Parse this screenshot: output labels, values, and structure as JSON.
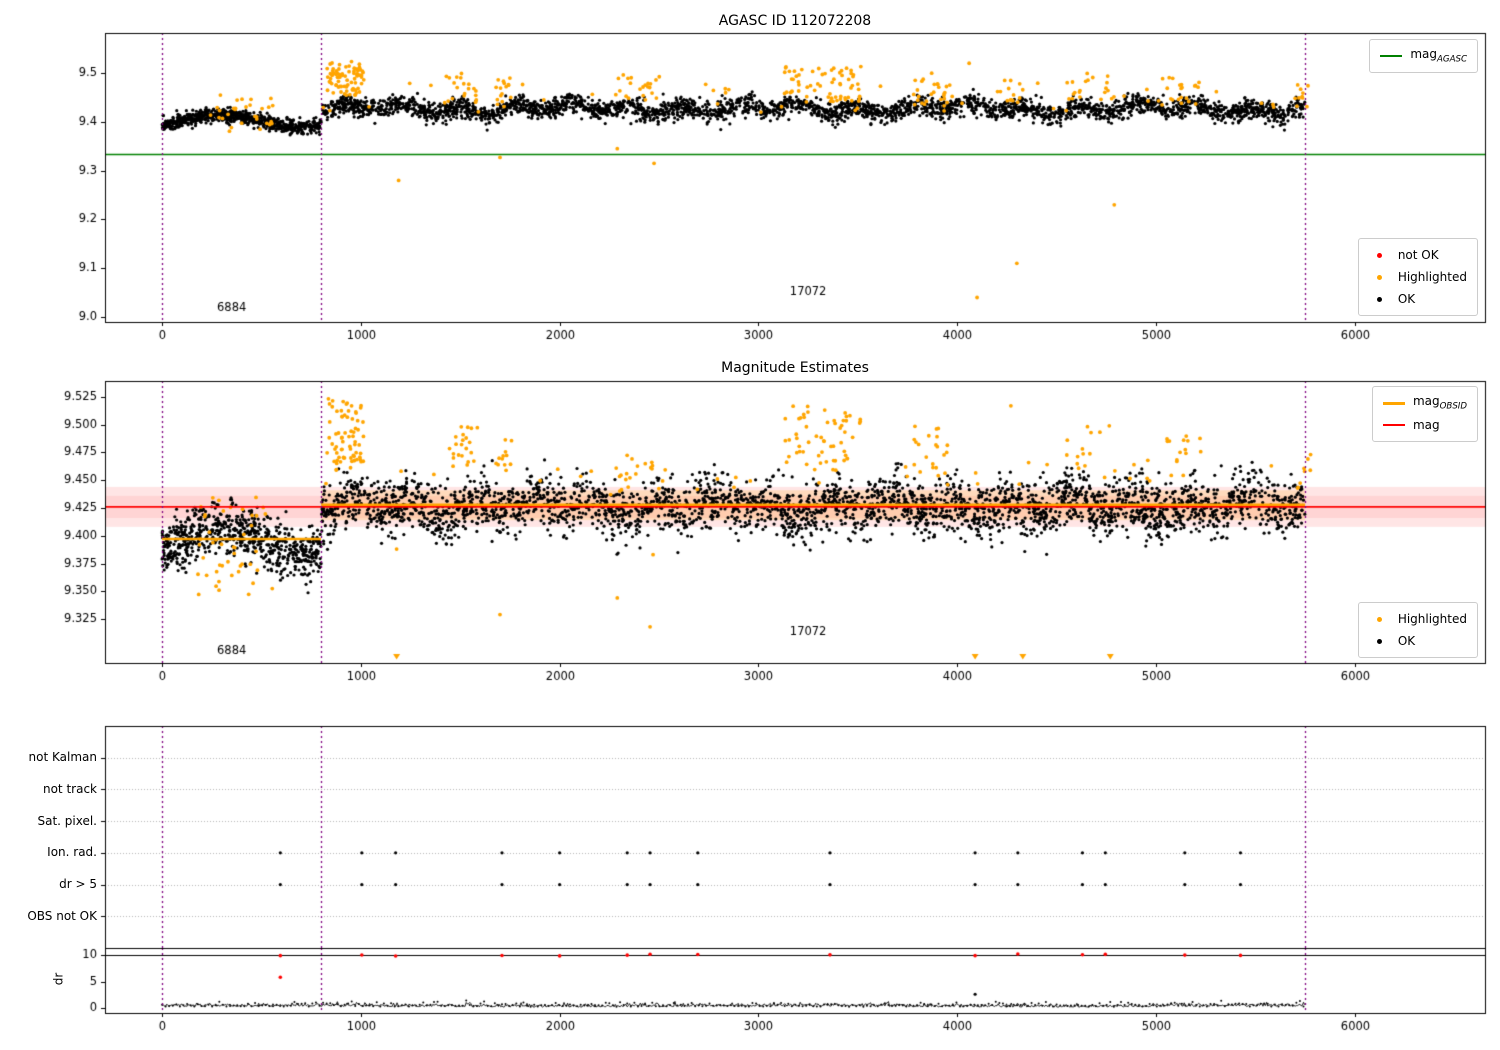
{
  "colors": {
    "ok": "#000000",
    "highlighted": "#ffa500",
    "not_ok": "#ff0000",
    "mag_agasc": "#008000",
    "mag": "#ff0000",
    "mag_obsid": "#ffa500",
    "vline": "#800080"
  },
  "chart_data": [
    {
      "type": "scatter",
      "title": "AGASC ID 112072208",
      "xlim": [
        -287,
        6655
      ],
      "ylim": [
        8.9898,
        9.582
      ],
      "xticks": [
        0,
        1000,
        2000,
        3000,
        4000,
        5000,
        6000
      ],
      "yticks": [
        9.0,
        9.1,
        9.2,
        9.3,
        9.4,
        9.5
      ],
      "ytick_decimals": 1,
      "mag_agasc": 9.333,
      "vlines": [
        0,
        800,
        5750
      ],
      "annotations": [
        {
          "text": "6884",
          "x": 350,
          "y": 9.018
        },
        {
          "text": "17072",
          "x": 3250,
          "y": 9.052
        }
      ],
      "ok_segments": [
        {
          "x0": 0,
          "x1": 800,
          "n": 760,
          "base": 9.402,
          "amp1": 0.012,
          "p1": 800,
          "ph1": -0.785,
          "amp2": 0,
          "p2": 1,
          "ph2": 0,
          "sigma": 0.007,
          "clip": [
            9.368,
            9.462
          ]
        },
        {
          "x0": 800,
          "x1": 5750,
          "n": 3000,
          "base": 9.427,
          "amp1": 0.007,
          "p1": 285,
          "ph1": 0,
          "amp2": 0.005,
          "p2": 980,
          "ph2": 1.0,
          "sigma": 0.01,
          "clip": [
            9.383,
            9.492
          ]
        }
      ],
      "highlight_clusters": [
        [
          30,
          240,
          560,
          9.37,
          9.455
        ],
        [
          80,
          830,
          1020,
          9.45,
          9.525
        ],
        [
          18,
          1430,
          1600,
          9.44,
          9.505
        ],
        [
          14,
          1680,
          1760,
          9.43,
          9.49
        ],
        [
          20,
          2280,
          2520,
          9.435,
          9.5
        ],
        [
          60,
          3130,
          3520,
          9.44,
          9.515
        ],
        [
          25,
          3780,
          3960,
          9.43,
          9.5
        ],
        [
          12,
          4200,
          4330,
          9.44,
          9.492
        ],
        [
          18,
          4550,
          4800,
          9.44,
          9.5
        ],
        [
          20,
          5030,
          5230,
          9.43,
          9.5
        ],
        [
          10,
          5700,
          5780,
          9.43,
          9.48
        ],
        [
          55,
          800,
          5750,
          9.42,
          9.48
        ]
      ],
      "highlight_outliers": [
        [
          1190,
          9.28
        ],
        [
          1700,
          9.327
        ],
        [
          2290,
          9.345
        ],
        [
          2475,
          9.315
        ],
        [
          4060,
          9.52
        ],
        [
          4100,
          9.04
        ],
        [
          4300,
          9.11
        ],
        [
          4790,
          9.23
        ]
      ]
    },
    {
      "type": "scatter",
      "title": "Magnitude Estimates",
      "xlim": [
        -287,
        6655
      ],
      "ylim": [
        9.2854,
        9.5394
      ],
      "xticks": [
        0,
        1000,
        2000,
        3000,
        4000,
        5000,
        6000
      ],
      "yticks": [
        9.325,
        9.35,
        9.375,
        9.4,
        9.425,
        9.45,
        9.475,
        9.5,
        9.525
      ],
      "ytick_decimals": 3,
      "mag": 9.426,
      "mag_obsid_segments": [
        {
          "x0": 0,
          "x1": 800,
          "y": 9.397
        },
        {
          "x0": 800,
          "x1": 5750,
          "y": 9.428
        }
      ],
      "bands": [
        {
          "x0": -287,
          "x1": 6655,
          "y0": 9.408,
          "y1": 9.444,
          "color": "rgba(255,0,0,0.10)"
        },
        {
          "x0": -287,
          "x1": 6655,
          "y0": 9.416,
          "y1": 9.436,
          "color": "rgba(255,0,0,0.08)"
        },
        {
          "x0": 800,
          "x1": 5750,
          "y0": 9.414,
          "y1": 9.441,
          "color": "rgba(255,165,0,0.18)"
        }
      ],
      "vlines": [
        0,
        800,
        5750
      ],
      "annotations": [
        {
          "text": "6884",
          "x": 350,
          "y": 9.296
        },
        {
          "text": "17072",
          "x": 3250,
          "y": 9.313
        }
      ],
      "ok_segments": [
        {
          "x0": 0,
          "x1": 800,
          "n": 700,
          "base": 9.396,
          "amp1": 0.012,
          "p1": 800,
          "ph1": -0.785,
          "amp2": 0,
          "p2": 1,
          "ph2": 0,
          "sigma": 0.012,
          "clip": [
            9.347,
            9.448
          ]
        },
        {
          "x0": 800,
          "x1": 5750,
          "n": 3200,
          "base": 9.4265,
          "amp1": 0.006,
          "p1": 300,
          "ph1": 0,
          "amp2": 0.004,
          "p2": 900,
          "ph2": 1.0,
          "sigma": 0.0125,
          "clip": [
            9.373,
            9.486
          ]
        }
      ],
      "highlight_clusters": [
        [
          45,
          180,
          560,
          9.345,
          9.44
        ],
        [
          70,
          830,
          1020,
          9.465,
          9.525
        ],
        [
          20,
          1430,
          1600,
          9.462,
          9.5
        ],
        [
          12,
          1680,
          1760,
          9.455,
          9.49
        ],
        [
          18,
          2280,
          2520,
          9.44,
          9.475
        ],
        [
          55,
          3130,
          3520,
          9.455,
          9.518
        ],
        [
          20,
          3780,
          3960,
          9.45,
          9.5
        ],
        [
          15,
          4550,
          4800,
          9.45,
          9.5
        ],
        [
          15,
          5050,
          5230,
          9.45,
          9.49
        ],
        [
          8,
          5700,
          5780,
          9.44,
          9.475
        ],
        [
          40,
          800,
          5750,
          9.435,
          9.468
        ]
      ],
      "highlight_outliers": [
        [
          1700,
          9.329
        ],
        [
          2290,
          9.344
        ],
        [
          2455,
          9.318
        ],
        [
          2470,
          9.383
        ],
        [
          4270,
          9.517
        ],
        [
          1180,
          9.388
        ]
      ],
      "clipped_markers": [
        1180,
        4090,
        4330,
        4770
      ]
    },
    {
      "type": "flags",
      "xlim": [
        -287,
        6655
      ],
      "rows": [
        "not Kalman",
        "not track",
        "Sat. pixel.",
        "Ion. rad.",
        "dr > 5",
        "OBS not OK"
      ],
      "ion_rad_events": [
        595,
        1005,
        1175,
        1710,
        2000,
        2340,
        2455,
        2695,
        3360,
        4090,
        4305,
        4630,
        4745,
        5145,
        5425
      ],
      "dr5_events": [
        595,
        1005,
        1175,
        1710,
        2000,
        2340,
        2455,
        2695,
        3360,
        4090,
        4305,
        4630,
        4745,
        5145,
        5425
      ],
      "vlines": [
        0,
        800,
        5750
      ]
    },
    {
      "type": "line",
      "ylabel": "dr",
      "xlim": [
        -287,
        6655
      ],
      "ylim": [
        -0.94,
        11.32
      ],
      "yticks": [
        0,
        5,
        10
      ],
      "ytick_decimals": 0,
      "xticks": [
        0,
        1000,
        2000,
        3000,
        4000,
        5000,
        6000
      ],
      "hline": 10,
      "trace": {
        "x0": 0,
        "x1": 5750,
        "step": 6,
        "base": 0.25,
        "sigma": 0.3
      },
      "red_x": [
        595,
        1005,
        1175,
        1710,
        2000,
        2340,
        2455,
        2695,
        3360,
        4090,
        4305,
        4630,
        4745,
        5145,
        5425
      ],
      "red_y": 10,
      "extra_red": [
        [
          595,
          5.8
        ]
      ],
      "extra_black": [
        [
          4090,
          2.6
        ]
      ],
      "vlines": [
        0,
        800,
        5750
      ]
    }
  ],
  "legends": [
    {
      "id": "l0a",
      "entries": [
        {
          "marker": "line",
          "color": "#008000",
          "label": "mag",
          "sub": "AGASC"
        }
      ]
    },
    {
      "id": "l0b",
      "entries": [
        {
          "marker": "dot",
          "color": "#ff0000",
          "label": "not OK",
          "sub": ""
        },
        {
          "marker": "dot",
          "color": "#ffa500",
          "label": "Highlighted",
          "sub": ""
        },
        {
          "marker": "dot",
          "color": "#000000",
          "label": "OK",
          "sub": ""
        }
      ]
    },
    {
      "id": "l1a",
      "entries": [
        {
          "marker": "thickline",
          "color": "#ffa500",
          "label": "mag",
          "sub": "OBSID"
        },
        {
          "marker": "line",
          "color": "#ff0000",
          "label": "mag",
          "sub": ""
        }
      ]
    },
    {
      "id": "l1b",
      "entries": [
        {
          "marker": "dot",
          "color": "#ffa500",
          "label": "Highlighted",
          "sub": ""
        },
        {
          "marker": "dot",
          "color": "#000000",
          "label": "OK",
          "sub": ""
        }
      ]
    }
  ]
}
